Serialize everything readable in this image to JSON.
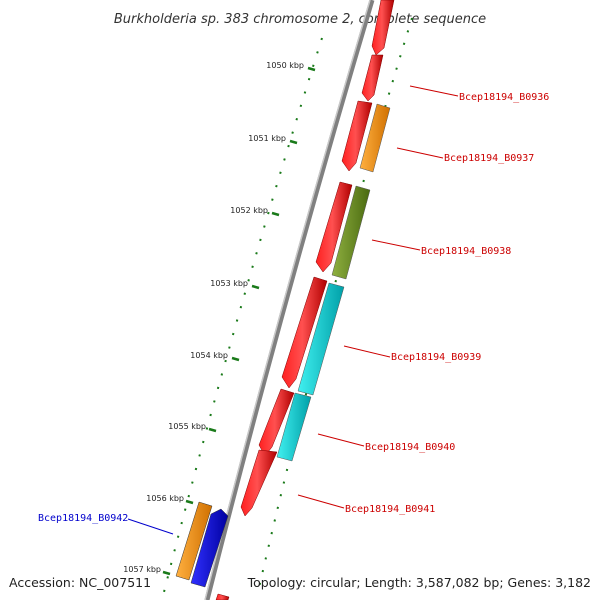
{
  "title": "Burkholderia sp. 383 chromosome 2, complete sequence",
  "footer": {
    "accession": "Accession: NC_007511",
    "topology": "Topology: circular; Length: 3,587,082 bp; Genes: 3,182"
  },
  "kbp_labels": [
    "1050 kbp",
    "1051 kbp",
    "1052 kbp",
    "1053 kbp",
    "1054 kbp",
    "1055 kbp",
    "1056 kbp",
    "1057 kbp"
  ],
  "genes": [
    {
      "name": "Bcep18194_B0936",
      "color": "#cc0000"
    },
    {
      "name": "Bcep18194_B0937",
      "color": "#cc0000"
    },
    {
      "name": "Bcep18194_B0938",
      "color": "#cc0000"
    },
    {
      "name": "Bcep18194_B0939",
      "color": "#cc0000"
    },
    {
      "name": "Bcep18194_B0940",
      "color": "#cc0000"
    },
    {
      "name": "Bcep18194_B0941",
      "color": "#cc0000"
    },
    {
      "name": "Bcep18194_B0942",
      "color": "#0000cc"
    }
  ],
  "colors": {
    "cds_red": "#ff0000",
    "orange": "#ff9900",
    "olive": "#6b8e23",
    "cyan": "#00d0d0",
    "blue": "#0000ee",
    "backbone": "#808080",
    "gc_green": "#1a7a1a"
  }
}
